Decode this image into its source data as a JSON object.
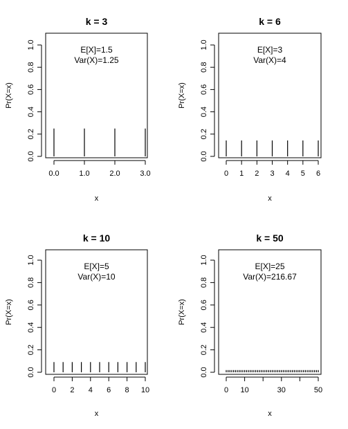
{
  "chart_data": [
    {
      "type": "bar",
      "title": "k = 3",
      "xlabel": "x",
      "ylabel": "Pr(X=x)",
      "x": [
        0,
        1,
        2,
        3
      ],
      "values": [
        0.25,
        0.25,
        0.25,
        0.25
      ],
      "xlim": [
        0,
        3
      ],
      "ylim": [
        0,
        1
      ],
      "xticks": [
        "0.0",
        "1.0",
        "2.0",
        "3.0"
      ],
      "xtick_values": [
        0,
        1,
        2,
        3
      ],
      "yticks": [
        "0.0",
        "0.2",
        "0.4",
        "0.6",
        "0.8",
        "1.0"
      ],
      "ytick_values": [
        0,
        0.2,
        0.4,
        0.6,
        0.8,
        1.0
      ],
      "annotations": [
        "E[X]=1.5",
        "Var(X)=1.25"
      ],
      "grid": false
    },
    {
      "type": "bar",
      "title": "k = 6",
      "xlabel": "x",
      "ylabel": "Pr(X=x)",
      "x": [
        0,
        1,
        2,
        3,
        4,
        5,
        6
      ],
      "values": [
        0.142857,
        0.142857,
        0.142857,
        0.142857,
        0.142857,
        0.142857,
        0.142857
      ],
      "xlim": [
        0,
        6
      ],
      "ylim": [
        0,
        1
      ],
      "xticks": [
        "0",
        "1",
        "2",
        "3",
        "4",
        "5",
        "6"
      ],
      "xtick_values": [
        0,
        1,
        2,
        3,
        4,
        5,
        6
      ],
      "yticks": [
        "0.0",
        "0.2",
        "0.4",
        "0.6",
        "0.8",
        "1.0"
      ],
      "ytick_values": [
        0,
        0.2,
        0.4,
        0.6,
        0.8,
        1.0
      ],
      "annotations": [
        "E[X]=3",
        "Var(X)=4"
      ],
      "grid": false
    },
    {
      "type": "bar",
      "title": "k = 10",
      "xlabel": "x",
      "ylabel": "Pr(X=x)",
      "x": [
        0,
        1,
        2,
        3,
        4,
        5,
        6,
        7,
        8,
        9,
        10
      ],
      "values": [
        0.090909,
        0.090909,
        0.090909,
        0.090909,
        0.090909,
        0.090909,
        0.090909,
        0.090909,
        0.090909,
        0.090909,
        0.090909
      ],
      "xlim": [
        0,
        10
      ],
      "ylim": [
        0,
        1
      ],
      "xticks": [
        "0",
        "2",
        "4",
        "6",
        "8",
        "10"
      ],
      "xtick_values": [
        0,
        2,
        4,
        6,
        8,
        10
      ],
      "yticks": [
        "0.0",
        "0.2",
        "0.4",
        "0.6",
        "0.8",
        "1.0"
      ],
      "ytick_values": [
        0,
        0.2,
        0.4,
        0.6,
        0.8,
        1.0
      ],
      "annotations": [
        "E[X]=5",
        "Var(X)=10"
      ],
      "grid": false
    },
    {
      "type": "bar",
      "title": "k = 50",
      "xlabel": "x",
      "ylabel": "Pr(X=x)",
      "x": [
        0,
        1,
        2,
        3,
        4,
        5,
        6,
        7,
        8,
        9,
        10,
        11,
        12,
        13,
        14,
        15,
        16,
        17,
        18,
        19,
        20,
        21,
        22,
        23,
        24,
        25,
        26,
        27,
        28,
        29,
        30,
        31,
        32,
        33,
        34,
        35,
        36,
        37,
        38,
        39,
        40,
        41,
        42,
        43,
        44,
        45,
        46,
        47,
        48,
        49,
        50
      ],
      "values": [
        0.019608,
        0.019608,
        0.019608,
        0.019608,
        0.019608,
        0.019608,
        0.019608,
        0.019608,
        0.019608,
        0.019608,
        0.019608,
        0.019608,
        0.019608,
        0.019608,
        0.019608,
        0.019608,
        0.019608,
        0.019608,
        0.019608,
        0.019608,
        0.019608,
        0.019608,
        0.019608,
        0.019608,
        0.019608,
        0.019608,
        0.019608,
        0.019608,
        0.019608,
        0.019608,
        0.019608,
        0.019608,
        0.019608,
        0.019608,
        0.019608,
        0.019608,
        0.019608,
        0.019608,
        0.019608,
        0.019608,
        0.019608,
        0.019608,
        0.019608,
        0.019608,
        0.019608,
        0.019608,
        0.019608,
        0.019608,
        0.019608,
        0.019608,
        0.019608
      ],
      "xlim": [
        0,
        50
      ],
      "ylim": [
        0,
        1
      ],
      "xticks": [
        "0",
        "10",
        "30",
        "50"
      ],
      "xtick_values": [
        0,
        10,
        30,
        50
      ],
      "minor_xtick_values": [
        20,
        40
      ],
      "yticks": [
        "0.0",
        "0.2",
        "0.4",
        "0.6",
        "0.8",
        "1.0"
      ],
      "ytick_values": [
        0,
        0.2,
        0.4,
        0.6,
        0.8,
        1.0
      ],
      "annotations": [
        "E[X]=25",
        "Var(X)=216.67"
      ],
      "grid": false
    }
  ]
}
